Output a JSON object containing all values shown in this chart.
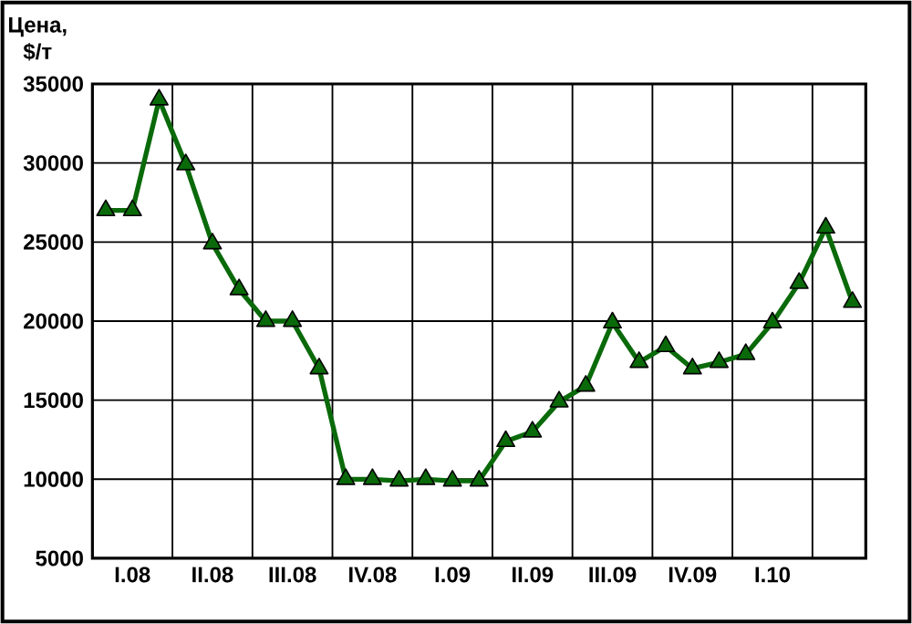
{
  "chart_data": {
    "type": "line",
    "ylabel": "Цена, $/т",
    "categories": [
      null,
      "I.08",
      null,
      null,
      "II.08",
      null,
      null,
      "III.08",
      null,
      null,
      "IV.08",
      null,
      null,
      "I.09",
      null,
      null,
      "II.09",
      null,
      null,
      "III.09",
      null,
      null,
      "IV.09",
      null,
      null,
      "I.10",
      null,
      null,
      null
    ],
    "series": [
      {
        "color": "#0a6a0a",
        "values": [
          27000,
          27000,
          34000,
          29900,
          24900,
          22000,
          20000,
          20000,
          17000,
          10000,
          10000,
          9900,
          10000,
          9900,
          9900,
          12400,
          13000,
          14900,
          15900,
          19900,
          17400,
          18400,
          17000,
          17400,
          17900,
          19900,
          22400,
          25900,
          21200
        ]
      }
    ],
    "marker": "triangle",
    "line_style": "solid",
    "grid": true,
    "ylim": [
      5000,
      35000
    ],
    "yticks": [
      5000,
      10000,
      15000,
      20000,
      25000,
      30000,
      35000
    ]
  }
}
